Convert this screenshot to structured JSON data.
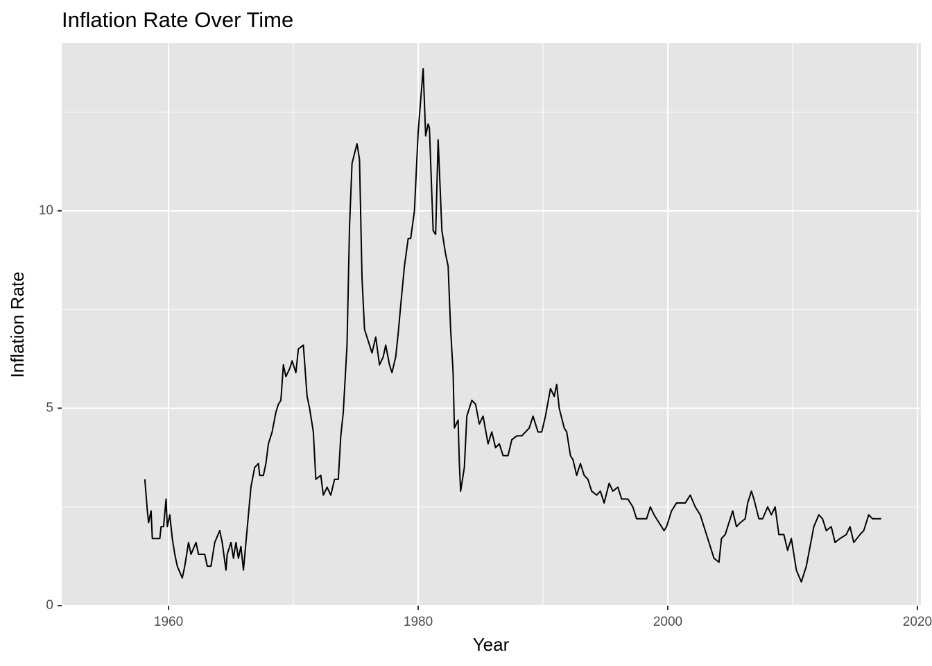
{
  "chart_data": {
    "type": "line",
    "title": "Inflation Rate Over Time",
    "x_label": "Year",
    "y_label": "Inflation Rate",
    "color": "#000000",
    "grid": true,
    "background": "#e5e5e5",
    "xlim": [
      1951.44,
      2020.28
    ],
    "ylim": [
      0,
      14.25
    ],
    "xticks": [
      1960,
      1980,
      2000,
      2020
    ],
    "yticks": [
      0,
      5,
      10
    ],
    "x_minor_grid": [
      1970,
      1990,
      2010
    ],
    "y_minor_grid": [
      2.5,
      7.5,
      12.5
    ],
    "x": [
      1958.1,
      1958.3,
      1958.4,
      1958.6,
      1958.7,
      1959.3,
      1959.4,
      1959.6,
      1959.8,
      1959.9,
      1960.1,
      1960.3,
      1960.5,
      1960.7,
      1961.1,
      1961.3,
      1961.6,
      1961.8,
      1962.2,
      1962.4,
      1962.9,
      1963.1,
      1963.4,
      1963.7,
      1964.1,
      1964.3,
      1964.6,
      1964.7,
      1965.0,
      1965.2,
      1965.4,
      1965.6,
      1965.8,
      1966.0,
      1966.4,
      1966.6,
      1966.9,
      1967.2,
      1967.3,
      1967.6,
      1967.8,
      1968.0,
      1968.3,
      1968.6,
      1968.8,
      1969.0,
      1969.2,
      1969.4,
      1969.7,
      1969.9,
      1970.2,
      1970.4,
      1970.8,
      1971.1,
      1971.3,
      1971.6,
      1971.8,
      1972.2,
      1972.4,
      1972.7,
      1973.0,
      1973.3,
      1973.6,
      1973.8,
      1974.0,
      1974.3,
      1974.5,
      1974.7,
      1975.1,
      1975.3,
      1975.5,
      1975.7,
      1976.1,
      1976.3,
      1976.6,
      1976.9,
      1977.2,
      1977.4,
      1977.7,
      1977.9,
      1978.2,
      1978.4,
      1978.6,
      1978.9,
      1979.2,
      1979.4,
      1979.7,
      1980.0,
      1980.2,
      1980.4,
      1980.6,
      1980.8,
      1980.9,
      1981.2,
      1981.4,
      1981.6,
      1981.9,
      1982.2,
      1982.4,
      1982.6,
      1982.8,
      1982.9,
      1983.2,
      1983.3,
      1983.4,
      1983.7,
      1983.9,
      1984.3,
      1984.6,
      1984.9,
      1985.2,
      1985.6,
      1985.9,
      1986.2,
      1986.5,
      1986.8,
      1987.2,
      1987.5,
      1987.9,
      1988.3,
      1988.6,
      1988.9,
      1989.2,
      1989.6,
      1989.9,
      1990.2,
      1990.6,
      1990.9,
      1991.1,
      1991.3,
      1991.7,
      1991.9,
      1992.2,
      1992.4,
      1992.7,
      1993.0,
      1993.3,
      1993.6,
      1993.9,
      1994.3,
      1994.6,
      1994.9,
      1995.3,
      1995.6,
      1996.0,
      1996.3,
      1996.8,
      1997.2,
      1997.5,
      1997.9,
      1998.3,
      1998.6,
      1998.9,
      1999.3,
      1999.7,
      1999.9,
      2000.3,
      2000.7,
      2001.1,
      2001.4,
      2001.8,
      2002.2,
      2002.6,
      2003.0,
      2003.4,
      2003.7,
      2004.1,
      2004.3,
      2004.6,
      2004.8,
      2005.2,
      2005.5,
      2005.8,
      2006.2,
      2006.4,
      2006.7,
      2006.9,
      2007.3,
      2007.6,
      2008.0,
      2008.3,
      2008.6,
      2008.9,
      2009.3,
      2009.6,
      2009.9,
      2010.3,
      2010.7,
      2011.1,
      2011.4,
      2011.7,
      2012.1,
      2012.4,
      2012.7,
      2013.1,
      2013.4,
      2013.8,
      2014.3,
      2014.6,
      2014.9,
      2015.4,
      2015.7,
      2016.1,
      2016.4,
      2016.7,
      2017.1
    ],
    "values": [
      3.2,
      2.4,
      2.1,
      2.4,
      1.7,
      1.7,
      2.0,
      2.0,
      2.7,
      2.0,
      2.3,
      1.7,
      1.3,
      1.0,
      0.7,
      1.0,
      1.6,
      1.3,
      1.6,
      1.3,
      1.3,
      1.0,
      1.0,
      1.6,
      1.9,
      1.6,
      0.9,
      1.3,
      1.6,
      1.2,
      1.6,
      1.2,
      1.5,
      0.9,
      2.3,
      3.0,
      3.5,
      3.6,
      3.3,
      3.3,
      3.6,
      4.1,
      4.4,
      4.9,
      5.1,
      5.2,
      6.1,
      5.8,
      6.0,
      6.2,
      5.9,
      6.5,
      6.6,
      5.3,
      5.0,
      4.4,
      3.2,
      3.3,
      2.8,
      3.0,
      2.8,
      3.2,
      3.2,
      4.3,
      4.9,
      6.6,
      9.6,
      11.2,
      11.7,
      11.3,
      8.3,
      7.0,
      6.6,
      6.4,
      6.8,
      6.1,
      6.3,
      6.6,
      6.1,
      5.9,
      6.3,
      6.9,
      7.6,
      8.6,
      9.3,
      9.3,
      10.0,
      12.0,
      12.8,
      13.6,
      11.9,
      12.2,
      12.1,
      9.5,
      9.4,
      11.8,
      9.5,
      8.9,
      8.6,
      7.0,
      5.9,
      4.5,
      4.7,
      3.6,
      2.9,
      3.5,
      4.8,
      5.2,
      5.1,
      4.6,
      4.8,
      4.1,
      4.4,
      4.0,
      4.1,
      3.8,
      3.8,
      4.2,
      4.3,
      4.3,
      4.4,
      4.5,
      4.8,
      4.4,
      4.4,
      4.8,
      5.5,
      5.3,
      5.6,
      5.0,
      4.5,
      4.4,
      3.8,
      3.7,
      3.3,
      3.6,
      3.3,
      3.2,
      2.9,
      2.8,
      2.9,
      2.6,
      3.1,
      2.9,
      3.0,
      2.7,
      2.7,
      2.5,
      2.2,
      2.2,
      2.2,
      2.5,
      2.3,
      2.1,
      1.9,
      2.0,
      2.4,
      2.6,
      2.6,
      2.6,
      2.8,
      2.5,
      2.3,
      1.9,
      1.5,
      1.2,
      1.1,
      1.7,
      1.8,
      2.0,
      2.4,
      2.0,
      2.1,
      2.2,
      2.6,
      2.9,
      2.7,
      2.2,
      2.2,
      2.5,
      2.3,
      2.5,
      1.8,
      1.8,
      1.4,
      1.7,
      0.9,
      0.6,
      1.0,
      1.5,
      2.0,
      2.3,
      2.2,
      1.9,
      2.0,
      1.6,
      1.7,
      1.8,
      2.0,
      1.6,
      1.8,
      1.9,
      2.3,
      2.2,
      2.2,
      2.2
    ]
  }
}
